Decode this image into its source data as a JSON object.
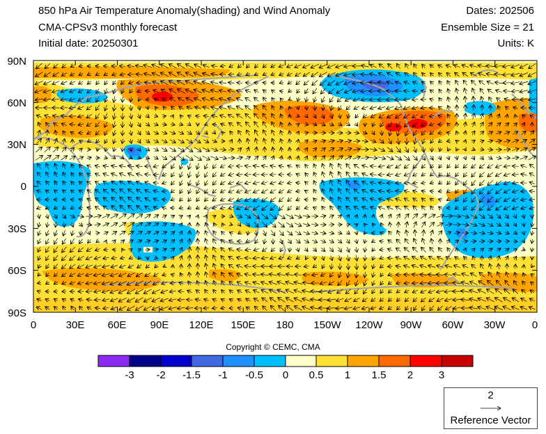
{
  "header": {
    "title": "850 hPa Air Temperature Anomaly(shading) and Wind Anomaly",
    "model": "CMA-CPSv3 monthly forecast",
    "initial_date": "Initial date: 20250301",
    "dates": "Dates: 202506",
    "ensemble": "Ensemble Size = 21",
    "units": "Units: K"
  },
  "map": {
    "lat_labels": [
      "90N",
      "60N",
      "30N",
      "0",
      "30S",
      "60S",
      "90S"
    ],
    "lon_labels": [
      "0",
      "30E",
      "60E",
      "90E",
      "120E",
      "150E",
      "180",
      "150W",
      "120W",
      "90W",
      "60W",
      "30W",
      "0"
    ],
    "land_color": "#a6a6a6"
  },
  "copyright": "Copyright © CEMC, CMA",
  "colorbar": {
    "colors": [
      "#8b2bf2",
      "#00008b",
      "#0000cd",
      "#4169e1",
      "#1e90ff",
      "#00bfff",
      "#ffffc8",
      "#ffe135",
      "#ffa500",
      "#ff6a00",
      "#ff0000",
      "#c80000"
    ],
    "labels": [
      "-3",
      "-2",
      "-1.5",
      "-1",
      "-0.5",
      "0",
      "0.5",
      "1",
      "1.5",
      "2",
      "3"
    ]
  },
  "reference_vector": {
    "magnitude": "2",
    "label": "Reference Vector"
  }
}
